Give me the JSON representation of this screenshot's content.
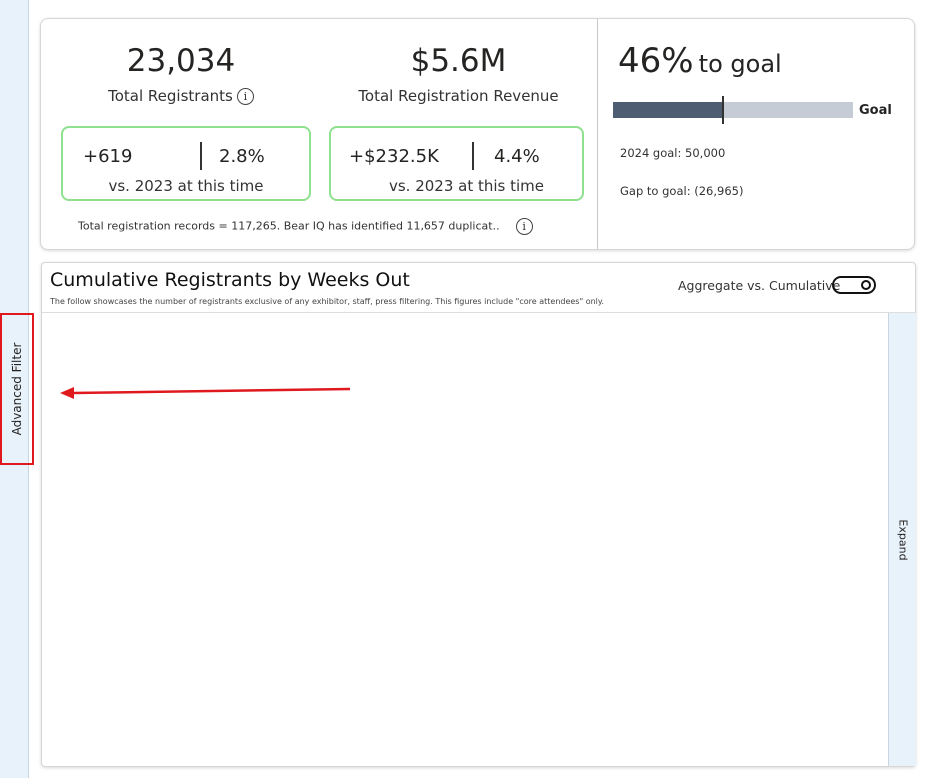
{
  "sidebar": {
    "advanced_filter": "Advanced Filter"
  },
  "kpis": {
    "registrants": {
      "value": "23,034",
      "label": "Total Registrants",
      "delta": "+619",
      "pct": "2.8%",
      "compare": "vs. 2023 at this time"
    },
    "revenue": {
      "value": "$5.6M",
      "label": "Total Registration Revenue",
      "delta": "+$232.5K",
      "pct": "4.4%",
      "compare": "vs. 2023 at this time"
    },
    "note": "Total registration records = 117,265. Bear IQ has identified 11,657 duplicat.."
  },
  "goal": {
    "pct": "46%",
    "suffix": "to goal",
    "progress_percent": 46,
    "bar_label": "Goal",
    "goal_text": "2024 goal: 50,000",
    "gap_text": "Gap to goal: (26,965)"
  },
  "chart": {
    "title": "Cumulative Registrants by Weeks Out",
    "subtitle": "The follow showcases the number of registrants exclusive of any exhibitor, staff, press filtering. This figures include \"core attendees\" only.",
    "toggle_label": "Aggregate vs. Cumulative",
    "toggle_on": true,
    "expand": "Expand"
  },
  "colors": {
    "accent_green": "#8fe08f",
    "annotation_red": "#e0191e",
    "bar_fill": "#4f5d73"
  }
}
